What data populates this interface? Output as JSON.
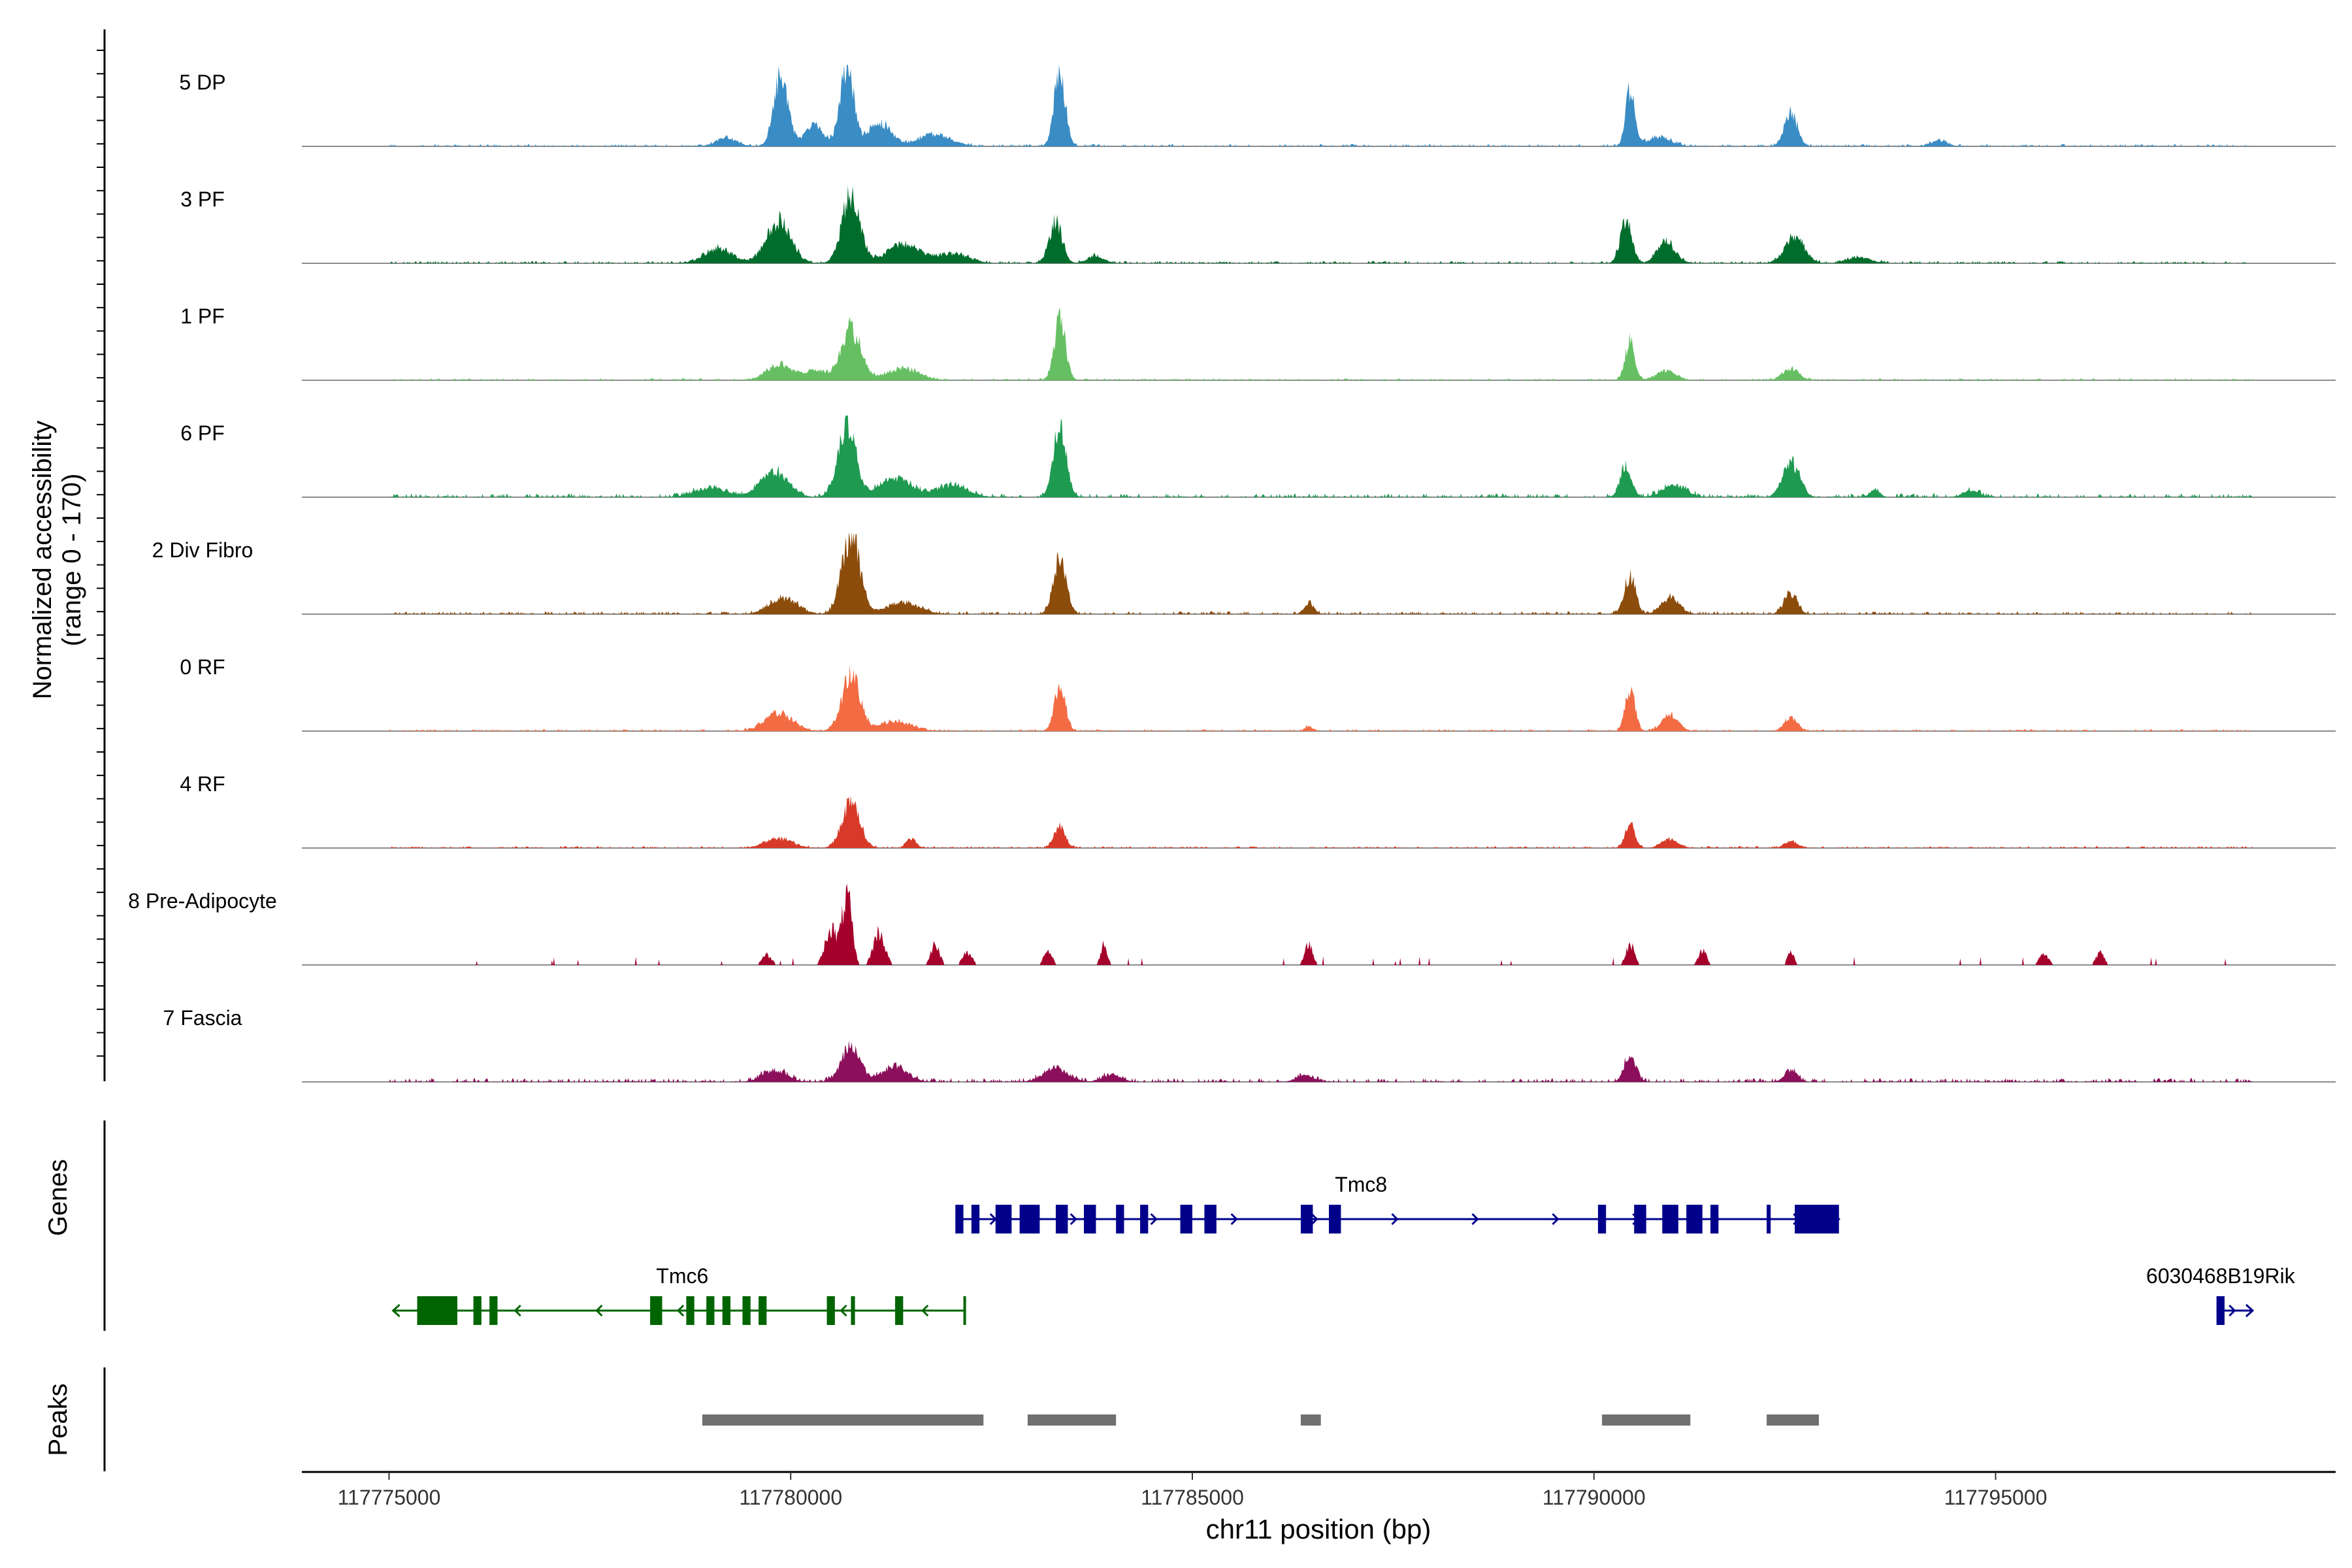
{
  "chart_data": {
    "type": "genome-coverage-track",
    "region": {
      "chromosome": "chr11",
      "start": 117774500,
      "end": 117800300
    },
    "ylabel_line1": "Normalized accessibility",
    "ylabel_line2": "(range 0 - 170)",
    "y_range": [
      0,
      170
    ],
    "xlabel": "chr11 position (bp)",
    "x_ticks": [
      117775000,
      117780000,
      117785000,
      117790000,
      117795000
    ],
    "x_tick_labels": [
      "117775000",
      "117780000",
      "117785000",
      "117790000",
      "117795000"
    ],
    "x_data_extent": [
      117775000,
      117798200
    ],
    "tracks": [
      {
        "name": "5 DP",
        "color": "#3a8cc4",
        "peaks": [
          [
            117779880,
            150,
            90
          ],
          [
            117780700,
            170,
            80
          ],
          [
            117783350,
            155,
            70
          ],
          [
            117790450,
            120,
            55
          ],
          [
            117792450,
            70,
            80
          ],
          [
            117779200,
            18,
            130
          ],
          [
            117780300,
            45,
            120
          ],
          [
            117781100,
            50,
            150
          ],
          [
            117781800,
            25,
            200
          ],
          [
            117790800,
            20,
            150
          ],
          [
            117794300,
            12,
            100
          ]
        ],
        "noise": [
          117775000,
          117798200,
          5
        ]
      },
      {
        "name": "3 PF",
        "color": "#006d2c",
        "peaks": [
          [
            117779850,
            90,
            150
          ],
          [
            117780750,
            150,
            110
          ],
          [
            117783300,
            90,
            80
          ],
          [
            117790400,
            95,
            70
          ],
          [
            117790900,
            45,
            110
          ],
          [
            117792500,
            55,
            120
          ],
          [
            117779100,
            30,
            180
          ],
          [
            117781400,
            40,
            200
          ],
          [
            117782000,
            20,
            200
          ],
          [
            117783800,
            15,
            100
          ],
          [
            117793300,
            12,
            150
          ]
        ],
        "noise": [
          117775000,
          117798200,
          5
        ]
      },
      {
        "name": "1 PF",
        "color": "#66c063",
        "peaks": [
          [
            117779850,
            35,
            150
          ],
          [
            117780750,
            110,
            120
          ],
          [
            117783350,
            130,
            70
          ],
          [
            117790450,
            85,
            60
          ],
          [
            117790900,
            20,
            120
          ],
          [
            117792450,
            25,
            100
          ],
          [
            117781400,
            25,
            200
          ],
          [
            117780300,
            20,
            150
          ]
        ],
        "noise": [
          117775000,
          117798200,
          4
        ]
      },
      {
        "name": "6 PF",
        "color": "#1f9a51",
        "peaks": [
          [
            117779800,
            55,
            170
          ],
          [
            117780700,
            155,
            110
          ],
          [
            117783350,
            150,
            80
          ],
          [
            117790400,
            65,
            70
          ],
          [
            117792450,
            75,
            100
          ],
          [
            117781300,
            40,
            200
          ],
          [
            117782000,
            25,
            200
          ],
          [
            117779000,
            20,
            200
          ],
          [
            117791000,
            25,
            150
          ],
          [
            117793500,
            15,
            60
          ],
          [
            117794700,
            15,
            100
          ]
        ],
        "noise": [
          117775000,
          117798200,
          8
        ]
      },
      {
        "name": "2 Div Fibro",
        "color": "#8c4c0c",
        "peaks": [
          [
            117779900,
            35,
            170
          ],
          [
            117780750,
            170,
            110
          ],
          [
            117783350,
            115,
            80
          ],
          [
            117790450,
            80,
            70
          ],
          [
            117790950,
            35,
            110
          ],
          [
            117792450,
            45,
            80
          ],
          [
            117781400,
            25,
            200
          ],
          [
            117786450,
            25,
            60
          ]
        ],
        "noise": [
          117775000,
          117798200,
          6
        ]
      },
      {
        "name": "0 RF",
        "color": "#f26b43",
        "peaks": [
          [
            117779850,
            40,
            170
          ],
          [
            117780750,
            120,
            110
          ],
          [
            117783350,
            90,
            70
          ],
          [
            117790450,
            90,
            60
          ],
          [
            117790950,
            35,
            100
          ],
          [
            117792450,
            30,
            80
          ],
          [
            117781300,
            20,
            200
          ],
          [
            117786450,
            10,
            50
          ]
        ],
        "noise": [
          117775000,
          117798200,
          4
        ]
      },
      {
        "name": "4 RF",
        "color": "#d73a28",
        "peaks": [
          [
            117779850,
            20,
            170
          ],
          [
            117780750,
            95,
            110
          ],
          [
            117783350,
            45,
            70
          ],
          [
            117790450,
            55,
            60
          ],
          [
            117790950,
            20,
            100
          ],
          [
            117792450,
            15,
            80
          ],
          [
            117781500,
            20,
            60
          ]
        ],
        "noise": [
          117775000,
          117798200,
          4
        ]
      },
      {
        "name": "8 Pre-Adipocyte",
        "color": "#a5002b",
        "peaks": [
          [
            117780700,
            170,
            60
          ],
          [
            117780500,
            90,
            70
          ],
          [
            117781100,
            80,
            70
          ],
          [
            117779700,
            25,
            60
          ],
          [
            117781800,
            55,
            50
          ],
          [
            117782200,
            30,
            60
          ],
          [
            117783200,
            35,
            50
          ],
          [
            117783900,
            50,
            40
          ],
          [
            117786450,
            50,
            50
          ],
          [
            117790450,
            50,
            50
          ],
          [
            117791350,
            35,
            50
          ],
          [
            117792450,
            30,
            40
          ],
          [
            117795600,
            25,
            60
          ],
          [
            117796300,
            30,
            50
          ]
        ],
        "noise": [
          117775000,
          117798200,
          0
        ],
        "sparse": true
      },
      {
        "name": "7 Fascia",
        "color": "#8b0f5a",
        "peaks": [
          [
            117779800,
            25,
            150
          ],
          [
            117780750,
            75,
            120
          ],
          [
            117781300,
            35,
            150
          ],
          [
            117783300,
            30,
            150
          ],
          [
            117790450,
            60,
            70
          ],
          [
            117792450,
            25,
            80
          ],
          [
            117786400,
            15,
            100
          ],
          [
            117784000,
            15,
            120
          ]
        ],
        "noise": [
          117775000,
          117798200,
          8
        ]
      }
    ],
    "genes_label": "Genes",
    "genes": [
      {
        "name": "Tmc8",
        "strand": "+",
        "color": "#00008b",
        "start": 117782050,
        "end": 117793050,
        "exons": [
          [
            117782050,
            117782150
          ],
          [
            117782250,
            117782350
          ],
          [
            117782550,
            117782750
          ],
          [
            117782850,
            117783100
          ],
          [
            117783300,
            117783450
          ],
          [
            117783650,
            117783800
          ],
          [
            117784050,
            117784150
          ],
          [
            117784350,
            117784450
          ],
          [
            117784850,
            117785000
          ],
          [
            117785150,
            117785300
          ],
          [
            117786350,
            117786500
          ],
          [
            117786700,
            117786850
          ],
          [
            117790050,
            117790150
          ],
          [
            117790500,
            117790650
          ],
          [
            117790850,
            117791050
          ],
          [
            117791150,
            117791350
          ],
          [
            117791450,
            117791550
          ],
          [
            117792150,
            117792200
          ],
          [
            117792500,
            117793050
          ]
        ]
      },
      {
        "name": "Tmc6",
        "strand": "-",
        "color": "#006400",
        "start": 117775050,
        "end": 117782150,
        "exons": [
          [
            117775350,
            117775850
          ],
          [
            117776050,
            117776150
          ],
          [
            117776250,
            117776350
          ],
          [
            117778250,
            117778400
          ],
          [
            117778700,
            117778800
          ],
          [
            117778950,
            117779050
          ],
          [
            117779150,
            117779250
          ],
          [
            117779400,
            117779500
          ],
          [
            117779600,
            117779700
          ],
          [
            117780450,
            117780550
          ],
          [
            117780750,
            117780800
          ],
          [
            117781300,
            117781400
          ],
          [
            117782150,
            117782170
          ]
        ]
      },
      {
        "name": "6030468B19Rik",
        "strand": "+",
        "color": "#00008b",
        "start": 117797750,
        "end": 117798200,
        "exons": [
          [
            117797750,
            117797850
          ]
        ]
      }
    ],
    "peaks_label": "Peaks",
    "peak_regions": [
      [
        117778900,
        117782400
      ],
      [
        117782950,
        117784050
      ],
      [
        117786350,
        117786600
      ],
      [
        117790100,
        117791200
      ],
      [
        117792150,
        117792800
      ]
    ],
    "peak_color": "#707070"
  }
}
